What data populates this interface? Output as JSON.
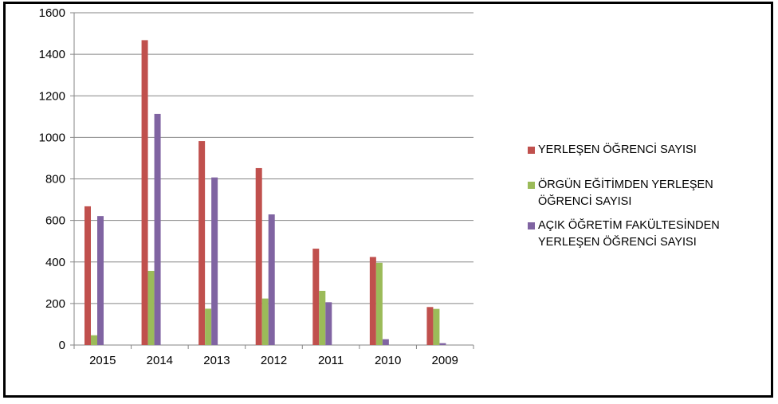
{
  "chart_data": {
    "type": "bar",
    "categories": [
      "2015",
      "2014",
      "2013",
      "2012",
      "2011",
      "2010",
      "2009"
    ],
    "series": [
      {
        "name": "YERLEŞEN ÖĞRENCİ SAYISI",
        "color": "#c0504d",
        "values": [
          668,
          1468,
          982,
          852,
          464,
          424,
          183
        ]
      },
      {
        "name": "ÖRGÜN EĞİTİMDEN YERLEŞEN ÖĞRENCİ SAYISI",
        "color": "#9bbb59",
        "values": [
          47,
          357,
          175,
          224,
          261,
          396,
          174
        ]
      },
      {
        "name": "AÇIK ÖĞRETİM FAKÜLTESİNDEN YERLEŞEN ÖĞRENCİ SAYISI",
        "color": "#8064a2",
        "values": [
          621,
          1113,
          807,
          629,
          206,
          28,
          9
        ]
      }
    ],
    "y_ticks": [
      "0",
      "200",
      "400",
      "600",
      "800",
      "1000",
      "1200",
      "1400",
      "1600"
    ],
    "ylim": [
      0,
      1600
    ],
    "grid": true,
    "legend_position": "right"
  }
}
